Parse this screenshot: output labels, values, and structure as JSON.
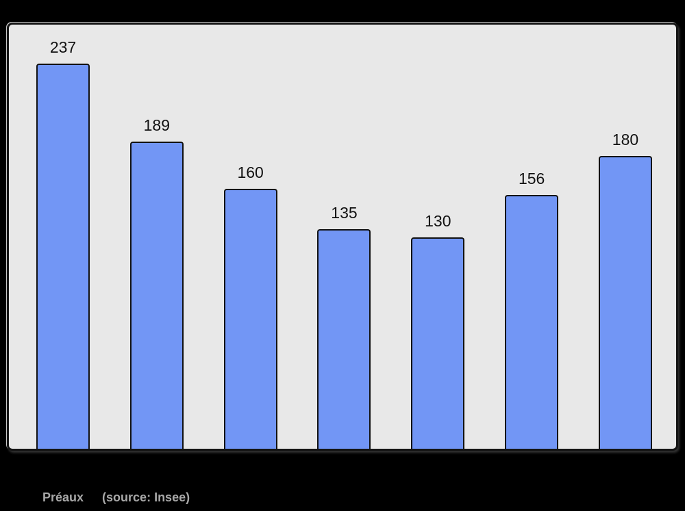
{
  "chart_data": {
    "type": "bar",
    "categories": [
      "",
      "",
      "",
      "",
      "",
      "",
      ""
    ],
    "values": [
      237,
      189,
      160,
      135,
      130,
      156,
      180
    ],
    "data_labels": [
      "237",
      "189",
      "160",
      "135",
      "130",
      "156",
      "180"
    ],
    "title": "",
    "xlabel": "",
    "ylabel": "",
    "ylim": [
      0,
      261
    ],
    "grid": false,
    "legend": false,
    "bar_color": "#7296f5",
    "bar_border_color": "#111111",
    "plot_bg_color": "#e8e8e8",
    "page_bg_color": "#000000",
    "label_color": "#111111"
  },
  "caption": {
    "name": "Préaux",
    "source": "(source: Insee)",
    "color": "#a8a8a8"
  }
}
